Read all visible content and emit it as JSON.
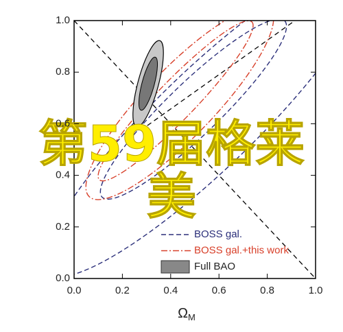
{
  "chart_data": {
    "type": "contour",
    "x_label": "Ω",
    "x_label_sub": "M",
    "xlim": [
      0,
      1
    ],
    "ylim": [
      0,
      1
    ],
    "xticks": [
      {
        "value": 0,
        "label": "0.0"
      },
      {
        "value": 0.2,
        "label": "0.2"
      },
      {
        "value": 0.4,
        "label": "0.4"
      },
      {
        "value": 0.6,
        "label": "0.6"
      },
      {
        "value": 0.8,
        "label": "0.8"
      },
      {
        "value": 1,
        "label": "1.0"
      }
    ],
    "yticks": [
      {
        "value": 0,
        "label": "0.0"
      },
      {
        "value": 0.2,
        "label": "0.2"
      },
      {
        "value": 0.4,
        "label": "0.4"
      },
      {
        "value": 0.6,
        "label": "0.6"
      },
      {
        "value": 0.8,
        "label": "0.8"
      },
      {
        "value": 1,
        "label": "1.0"
      }
    ],
    "series": [
      {
        "name": "BOSS gal.",
        "color": "#2b2f7a",
        "style": "dashed"
      },
      {
        "name": "BOSS gal.+this work",
        "color": "#d8402a",
        "style": "dashdot"
      },
      {
        "name": "Full BAO",
        "color": "#888888",
        "style": "filled"
      }
    ],
    "overlay_text": [
      "第59届格莱",
      "美"
    ]
  }
}
